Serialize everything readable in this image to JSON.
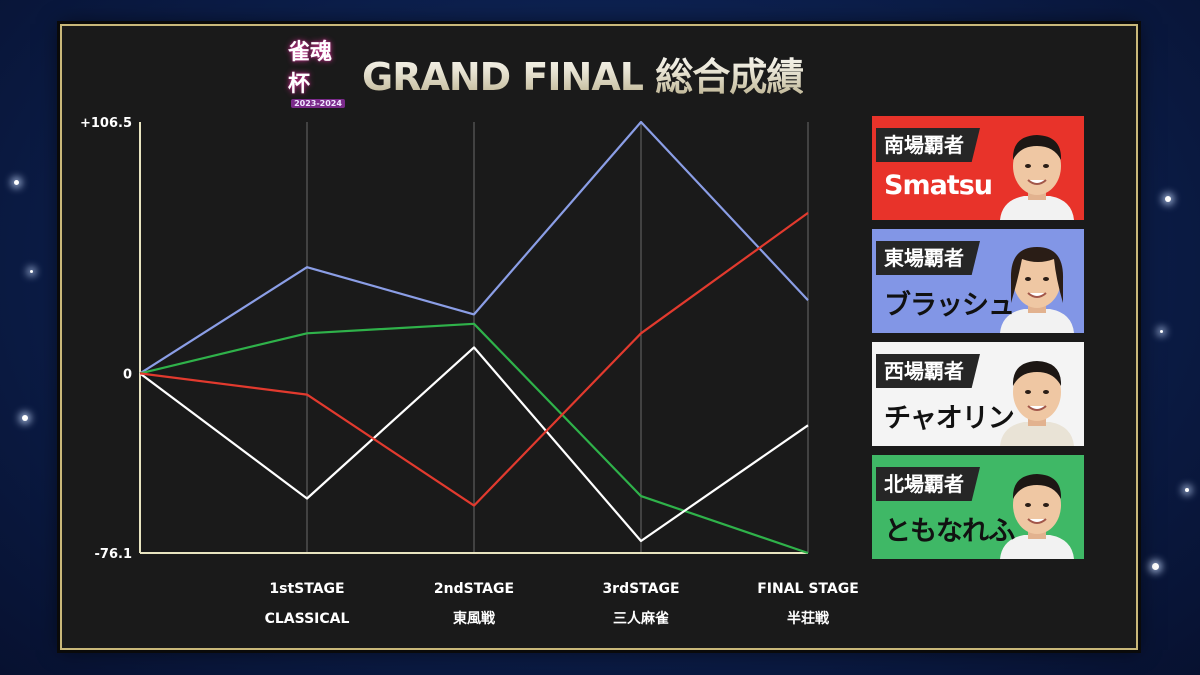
{
  "event": {
    "logo_name": "雀魂杯",
    "logo_year": "2023-2024",
    "title": "GRAND FINAL 総合成績"
  },
  "colors": {
    "blue": "#8b9ee6",
    "red": "#e23a2e",
    "green": "#2fb24a",
    "white": "#ffffff",
    "axis": "#e8e4c0",
    "card_red": "#e8332a",
    "card_blue": "#8296e6",
    "card_white": "#f4f4f4",
    "card_green": "#3fb866"
  },
  "chart_data": {
    "type": "line",
    "x_categories": [
      {
        "stage": "",
        "sub": ""
      },
      {
        "stage": "1stSTAGE",
        "sub": "CLASSICAL"
      },
      {
        "stage": "2ndSTAGE",
        "sub": "東風戦"
      },
      {
        "stage": "3rdSTAGE",
        "sub": "三人麻雀"
      },
      {
        "stage": "FINAL STAGE",
        "sub": "半荘戦"
      }
    ],
    "y_tick_labels": [
      "+106.5",
      "0",
      "-76.1"
    ],
    "ylim": [
      -76.1,
      106.5
    ],
    "series": [
      {
        "name": "ブラッシュ",
        "color": "blue",
        "values": [
          0,
          45,
          25,
          106.5,
          31
        ]
      },
      {
        "name": "Smatsu",
        "color": "red",
        "values": [
          0,
          -9,
          -56,
          17,
          68
        ]
      },
      {
        "name": "ともなれふ",
        "color": "green",
        "values": [
          0,
          17,
          21,
          -52,
          -76.1
        ]
      },
      {
        "name": "チャオリン",
        "color": "white",
        "values": [
          0,
          -53,
          11,
          -71,
          -22
        ]
      }
    ]
  },
  "players": [
    {
      "title": "南場覇者",
      "name": "Smatsu",
      "bg": "card_red"
    },
    {
      "title": "東場覇者",
      "name": "ブラッシュ",
      "bg": "card_blue"
    },
    {
      "title": "西場覇者",
      "name": "チャオリン",
      "bg": "card_white"
    },
    {
      "title": "北場覇者",
      "name": "ともなれふ",
      "bg": "card_green"
    }
  ]
}
